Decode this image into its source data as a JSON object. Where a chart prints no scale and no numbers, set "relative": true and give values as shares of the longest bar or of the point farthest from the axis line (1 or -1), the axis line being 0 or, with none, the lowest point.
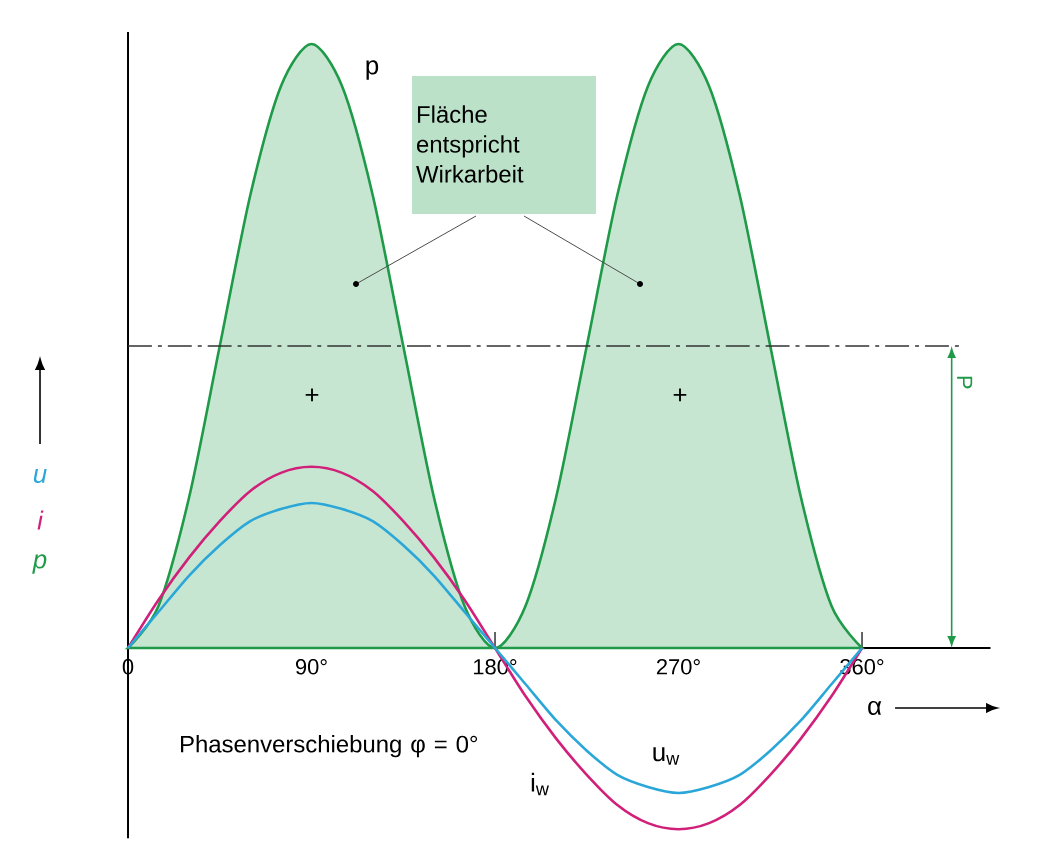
{
  "chart_data": {
    "type": "line",
    "relative": true,
    "x": [
      0,
      15,
      30,
      45,
      60,
      75,
      90,
      105,
      120,
      135,
      150,
      165,
      180,
      195,
      210,
      225,
      240,
      255,
      270,
      285,
      300,
      315,
      330,
      345,
      360
    ],
    "xlim": [
      0,
      423
    ],
    "xticks": [
      {
        "value": 0,
        "label": "0"
      },
      {
        "value": 30,
        "label": null
      },
      {
        "value": 60,
        "label": null
      },
      {
        "value": 90,
        "label": "90°"
      },
      {
        "value": 120,
        "label": null
      },
      {
        "value": 150,
        "label": null
      },
      {
        "value": 180,
        "label": "180°"
      },
      {
        "value": 210,
        "label": null
      },
      {
        "value": 240,
        "label": null
      },
      {
        "value": 270,
        "label": "270°"
      },
      {
        "value": 300,
        "label": null
      },
      {
        "value": 330,
        "label": null
      },
      {
        "value": 360,
        "label": "360°"
      }
    ],
    "xlabel": "α",
    "series": [
      {
        "name": "u",
        "color": "#2aa7d8",
        "values": [
          0,
          0.06,
          0.12,
          0.17,
          0.21,
          0.23,
          0.24,
          0.23,
          0.21,
          0.17,
          0.12,
          0.06,
          0,
          -0.06,
          -0.12,
          -0.17,
          -0.21,
          -0.23,
          -0.24,
          -0.23,
          -0.21,
          -0.17,
          -0.12,
          -0.06,
          0
        ]
      },
      {
        "name": "i",
        "color": "#d0207a",
        "values": [
          0,
          0.08,
          0.15,
          0.21,
          0.26,
          0.29,
          0.3,
          0.29,
          0.26,
          0.21,
          0.15,
          0.08,
          0,
          -0.08,
          -0.15,
          -0.21,
          -0.26,
          -0.29,
          -0.3,
          -0.29,
          -0.26,
          -0.21,
          -0.15,
          -0.08,
          0
        ]
      },
      {
        "name": "p",
        "type": "area",
        "color": "#1e9a48",
        "values": [
          0,
          0.07,
          0.25,
          0.5,
          0.75,
          0.93,
          1,
          0.93,
          0.75,
          0.5,
          0.25,
          0.07,
          0,
          0.07,
          0.25,
          0.5,
          0.75,
          0.93,
          1,
          0.93,
          0.75,
          0.5,
          0.25,
          0.07,
          0
        ]
      }
    ],
    "ref_lines": [
      {
        "axis": "y",
        "value": 0.5,
        "label": "P",
        "line_style": "dashed"
      }
    ],
    "annotations": [
      "+",
      "+",
      "Fläche entspricht Wirkarbeit",
      "Phasenverschiebung φ = 0°",
      "p",
      "u$_{w}$",
      "i$_{w}$"
    ],
    "legend": "left",
    "grid": false,
    "marker": "none",
    "line_style": "solid"
  }
}
